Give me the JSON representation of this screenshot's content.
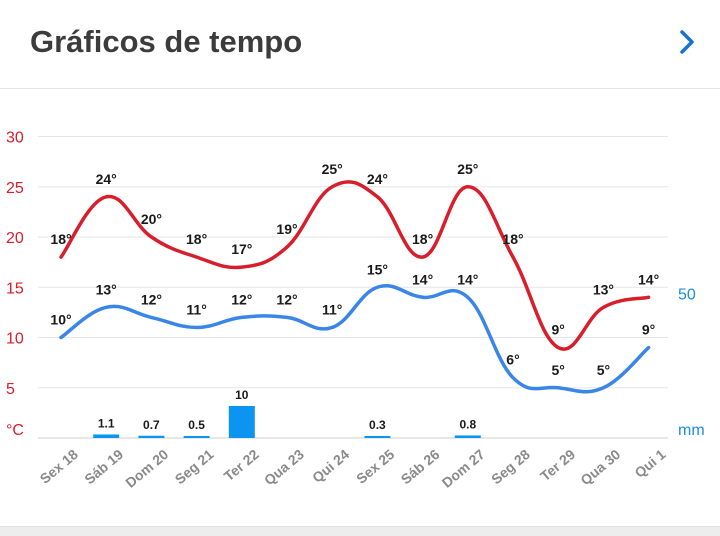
{
  "header": {
    "title": "Gráficos de tempo"
  },
  "colors": {
    "max": "#d81e2b",
    "min": "#3a86e8",
    "precip": "#0b95f0",
    "grid": "#e6e6e6"
  },
  "icons": {
    "next": "chevron-right-icon"
  },
  "chart_data": {
    "type": "line",
    "categories": [
      "Sex 18",
      "Sáb 19",
      "Dom 20",
      "Seg 21",
      "Ter 22",
      "Qua 23",
      "Qui 24",
      "Sex 25",
      "Sáb 26",
      "Dom 27",
      "Seg 28",
      "Ter 29",
      "Qua 30",
      "Qui 1"
    ],
    "series": [
      {
        "key": "max",
        "values": [
          18,
          24,
          20,
          18,
          17,
          19,
          25,
          24,
          18,
          25,
          18,
          9,
          13,
          14
        ],
        "labels": [
          "18°",
          "24°",
          "20°",
          "18°",
          "17°",
          "19°",
          "25°",
          "24°",
          "18°",
          "25°",
          "18°",
          "9°",
          "13°",
          "14°"
        ]
      },
      {
        "key": "min",
        "values": [
          10,
          13,
          12,
          11,
          12,
          12,
          11,
          15,
          14,
          14,
          6,
          5,
          5,
          9
        ],
        "labels": [
          "10°",
          "13°",
          "12°",
          "11°",
          "12°",
          "12°",
          "11°",
          "15°",
          "14°",
          "14°",
          "6°",
          "5°",
          "5°",
          "9°"
        ]
      },
      {
        "key": "precip",
        "type": "bar",
        "values": [
          null,
          1.1,
          0.7,
          0.5,
          10,
          null,
          null,
          0.3,
          null,
          0.8,
          null,
          null,
          null,
          null
        ],
        "labels": [
          "",
          "1.1",
          "0.7",
          "0.5",
          "10",
          "",
          "",
          "0.3",
          "",
          "0.8",
          "",
          "",
          "",
          ""
        ]
      }
    ],
    "y_ticks": [
      "30",
      "25",
      "20",
      "15",
      "10",
      "5",
      "°C"
    ],
    "ylim": [
      0,
      30
    ],
    "y2_ticks": [
      "50",
      "mm"
    ],
    "grid": true
  }
}
